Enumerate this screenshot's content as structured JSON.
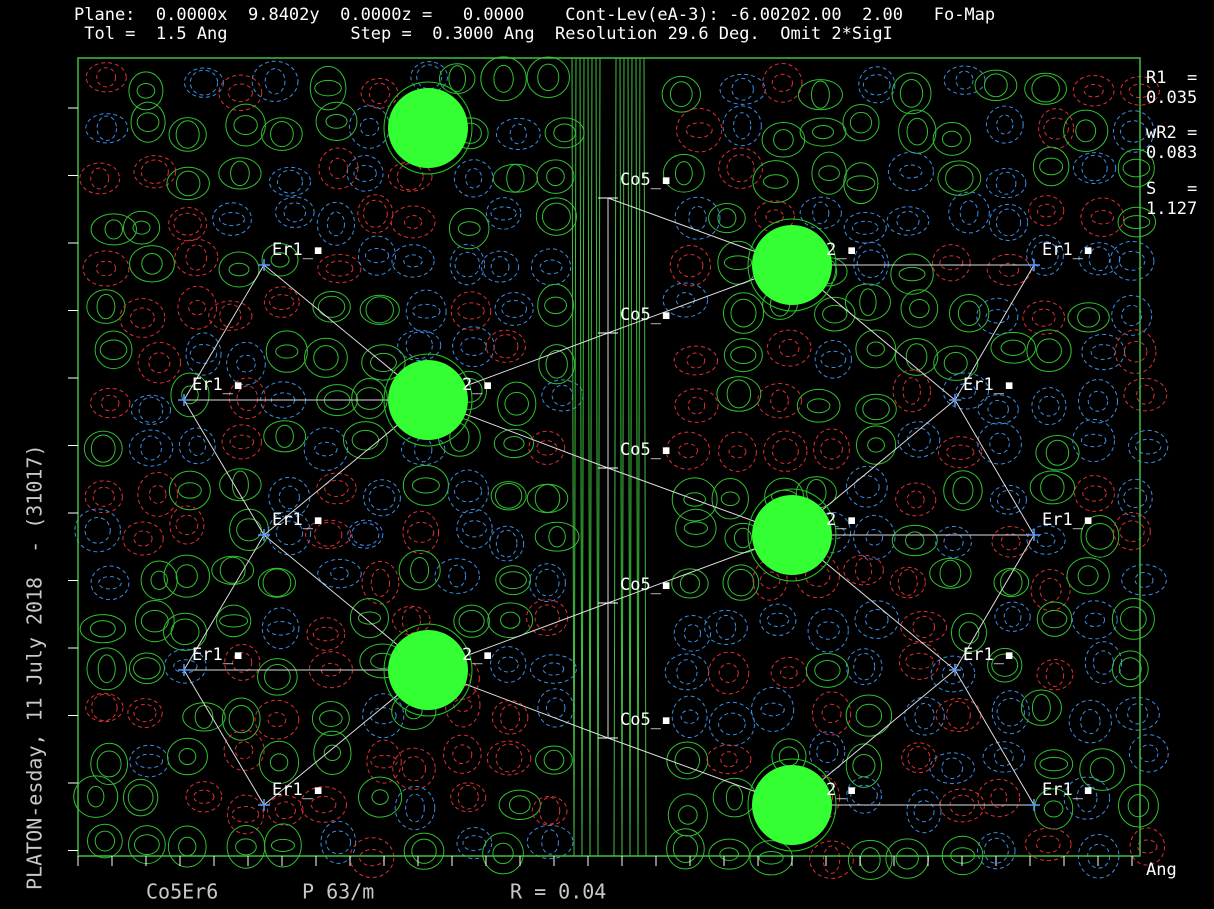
{
  "header": {
    "line1": "Plane:  0.0000x  9.8402y  0.0000z =   0.0000    Cont-Lev(eA-3): -6.00202.00  2.00   Fo-Map",
    "line2": " Tol =  1.5 Ang            Step =  0.3000 Ang  Resolution 29.6 Deg.  Omit 2*SigI"
  },
  "stats": {
    "r1_label": "R1  =",
    "r1": "0.035",
    "wr2_label": "wR2 =",
    "wr2": "0.083",
    "s_label": "S   =",
    "s": "1.127",
    "unit": "Ang"
  },
  "side_caption": "PLATON-esday, 11 July 2018  - (31017)",
  "footer": {
    "compound": "Co5Er6",
    "space_group": "P 63/m",
    "r": "R = 0.04"
  },
  "atoms": {
    "er1": "Er1_▪",
    "co5": "Co5_▪",
    "co2": "2_▪"
  }
}
